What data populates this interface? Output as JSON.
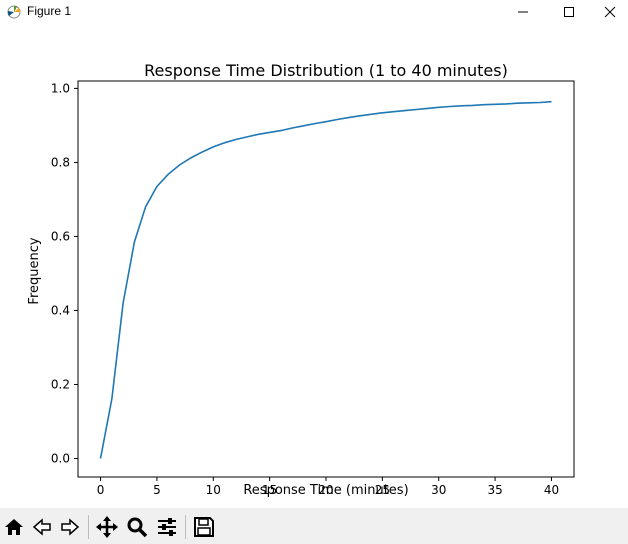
{
  "window": {
    "title": "Figure 1"
  },
  "toolbar": {
    "items": [
      "home-icon",
      "back-icon",
      "forward-icon",
      "pan-icon",
      "zoom-icon",
      "configure-subplots-icon",
      "save-icon"
    ]
  },
  "chart_data": {
    "type": "line",
    "title": "Response Time Distribution (1 to 40 minutes)",
    "xlabel": "Response Time (minutes)",
    "ylabel": "Frequency",
    "xlim": [
      -2,
      42
    ],
    "ylim": [
      -0.05,
      1.02
    ],
    "xticks": [
      0,
      5,
      10,
      15,
      20,
      25,
      30,
      35,
      40
    ],
    "xtick_labels": [
      "0",
      "5",
      "10",
      "15",
      "20",
      "25",
      "30",
      "35",
      "40"
    ],
    "yticks": [
      0.0,
      0.2,
      0.4,
      0.6,
      0.8,
      1.0
    ],
    "ytick_labels": [
      "0.0",
      "0.2",
      "0.4",
      "0.6",
      "0.8",
      "1.0"
    ],
    "grid": false,
    "line_color": "#1f77b4",
    "series": [
      {
        "x": [
          0,
          1,
          2,
          3,
          4,
          5,
          6,
          7,
          8,
          9,
          10,
          11,
          12,
          13,
          14,
          15,
          16,
          17,
          18,
          19,
          20,
          21,
          22,
          23,
          24,
          25,
          26,
          27,
          28,
          29,
          30,
          31,
          32,
          33,
          34,
          35,
          36,
          37,
          38,
          39,
          40
        ],
        "y": [
          0.0,
          0.16,
          0.42,
          0.585,
          0.68,
          0.735,
          0.768,
          0.793,
          0.812,
          0.828,
          0.842,
          0.853,
          0.862,
          0.869,
          0.876,
          0.881,
          0.886,
          0.893,
          0.899,
          0.905,
          0.91,
          0.916,
          0.921,
          0.926,
          0.93,
          0.934,
          0.937,
          0.94,
          0.943,
          0.946,
          0.949,
          0.951,
          0.953,
          0.954,
          0.956,
          0.957,
          0.958,
          0.96,
          0.961,
          0.962,
          0.964
        ]
      }
    ]
  }
}
